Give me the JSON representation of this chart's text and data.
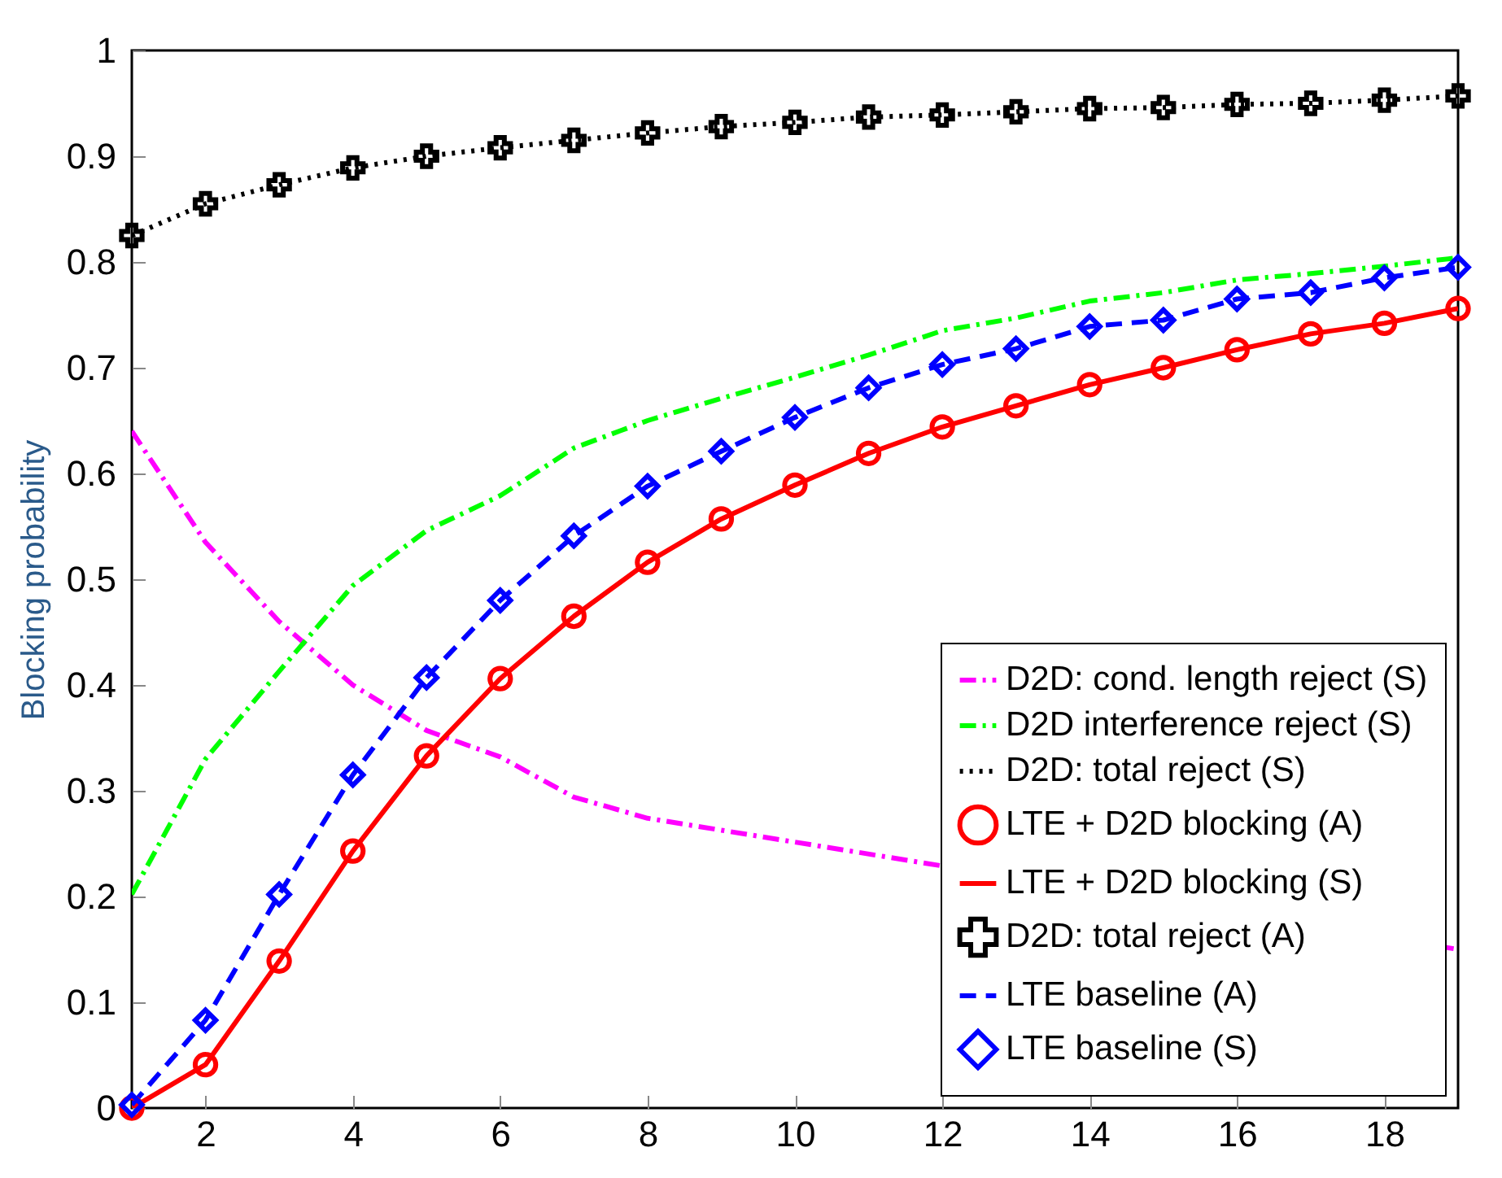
{
  "chart_data": {
    "type": "line",
    "ylabel": "Blocking probability",
    "x": [
      1,
      2,
      3,
      4,
      5,
      6,
      7,
      8,
      9,
      10,
      11,
      12,
      13,
      14,
      15,
      16,
      17,
      18,
      19
    ],
    "xlim": [
      1,
      19
    ],
    "xticks": [
      2,
      4,
      6,
      8,
      10,
      12,
      14,
      16,
      18
    ],
    "ylim": [
      0,
      1
    ],
    "yticks": [
      0,
      0.1,
      0.2,
      0.3,
      0.4,
      0.5,
      0.6,
      0.7,
      0.8,
      0.9,
      1
    ],
    "grid": false,
    "legend": "bottom right",
    "series": [
      {
        "name": "D2D: cond. length reject (S)",
        "type": "line",
        "color": "#ff00ff",
        "line_style": "dashdot",
        "values": [
          0.64,
          0.535,
          0.46,
          0.4,
          0.357,
          0.332,
          0.294,
          0.274,
          null,
          null,
          null,
          null,
          null,
          null,
          null,
          null,
          null,
          null,
          0.15
        ]
      },
      {
        "name": "D2D interference reject (S)",
        "type": "line",
        "color": "#00ff00",
        "line_style": "dashdot",
        "values": [
          0.202,
          0.33,
          0.413,
          0.494,
          0.546,
          0.579,
          0.624,
          0.65,
          0.671,
          0.691,
          0.712,
          0.735,
          0.747,
          0.763,
          0.771,
          0.783,
          0.789,
          0.796,
          0.804
        ]
      },
      {
        "name": "D2D: total reject (S)",
        "type": "line",
        "color": "#000000",
        "line_style": "dotted",
        "values": [
          0.825,
          0.855,
          0.873,
          0.889,
          0.9,
          0.908,
          0.915,
          0.922,
          0.928,
          0.932,
          0.937,
          0.939,
          0.942,
          0.945,
          0.946,
          0.949,
          0.95,
          0.953,
          0.957
        ]
      },
      {
        "name": "LTE + D2D blocking (A)",
        "type": "scatter",
        "color": "#ff0000",
        "marker": "circle",
        "values": [
          0,
          0.041,
          0.139,
          0.243,
          0.333,
          0.406,
          0.465,
          0.516,
          0.557,
          0.589,
          0.619,
          0.644,
          0.664,
          0.684,
          0.7,
          0.717,
          0.732,
          0.742,
          0.756
        ]
      },
      {
        "name": "LTE + D2D blocking (S)",
        "type": "line",
        "color": "#ff0000",
        "line_style": "solid",
        "values": [
          0,
          0.041,
          0.139,
          0.243,
          0.333,
          0.406,
          0.465,
          0.516,
          0.557,
          0.589,
          0.619,
          0.644,
          0.664,
          0.684,
          0.7,
          0.717,
          0.732,
          0.742,
          0.756
        ]
      },
      {
        "name": "D2D: total reject (A)",
        "type": "scatter",
        "color": "#000000",
        "marker": "cross",
        "values": [
          0.825,
          0.855,
          0.873,
          0.889,
          0.9,
          0.908,
          0.915,
          0.922,
          0.928,
          0.932,
          0.937,
          0.939,
          0.942,
          0.945,
          0.946,
          0.949,
          0.95,
          0.953,
          0.957
        ]
      },
      {
        "name": "LTE baseline (A)",
        "type": "line",
        "color": "#0000ff",
        "line_style": "dashed",
        "values": [
          0.003,
          0.083,
          0.202,
          0.315,
          0.407,
          0.48,
          0.541,
          0.588,
          0.621,
          0.653,
          0.681,
          0.703,
          0.718,
          0.739,
          0.745,
          0.765,
          0.771,
          0.785,
          0.795
        ]
      },
      {
        "name": "LTE baseline (S)",
        "type": "scatter",
        "color": "#0000ff",
        "marker": "diamond",
        "values": [
          0.003,
          0.083,
          0.202,
          0.315,
          0.407,
          0.48,
          0.541,
          0.588,
          0.621,
          0.653,
          0.681,
          0.703,
          0.718,
          0.739,
          0.745,
          0.765,
          0.771,
          0.785,
          0.795
        ]
      }
    ]
  }
}
